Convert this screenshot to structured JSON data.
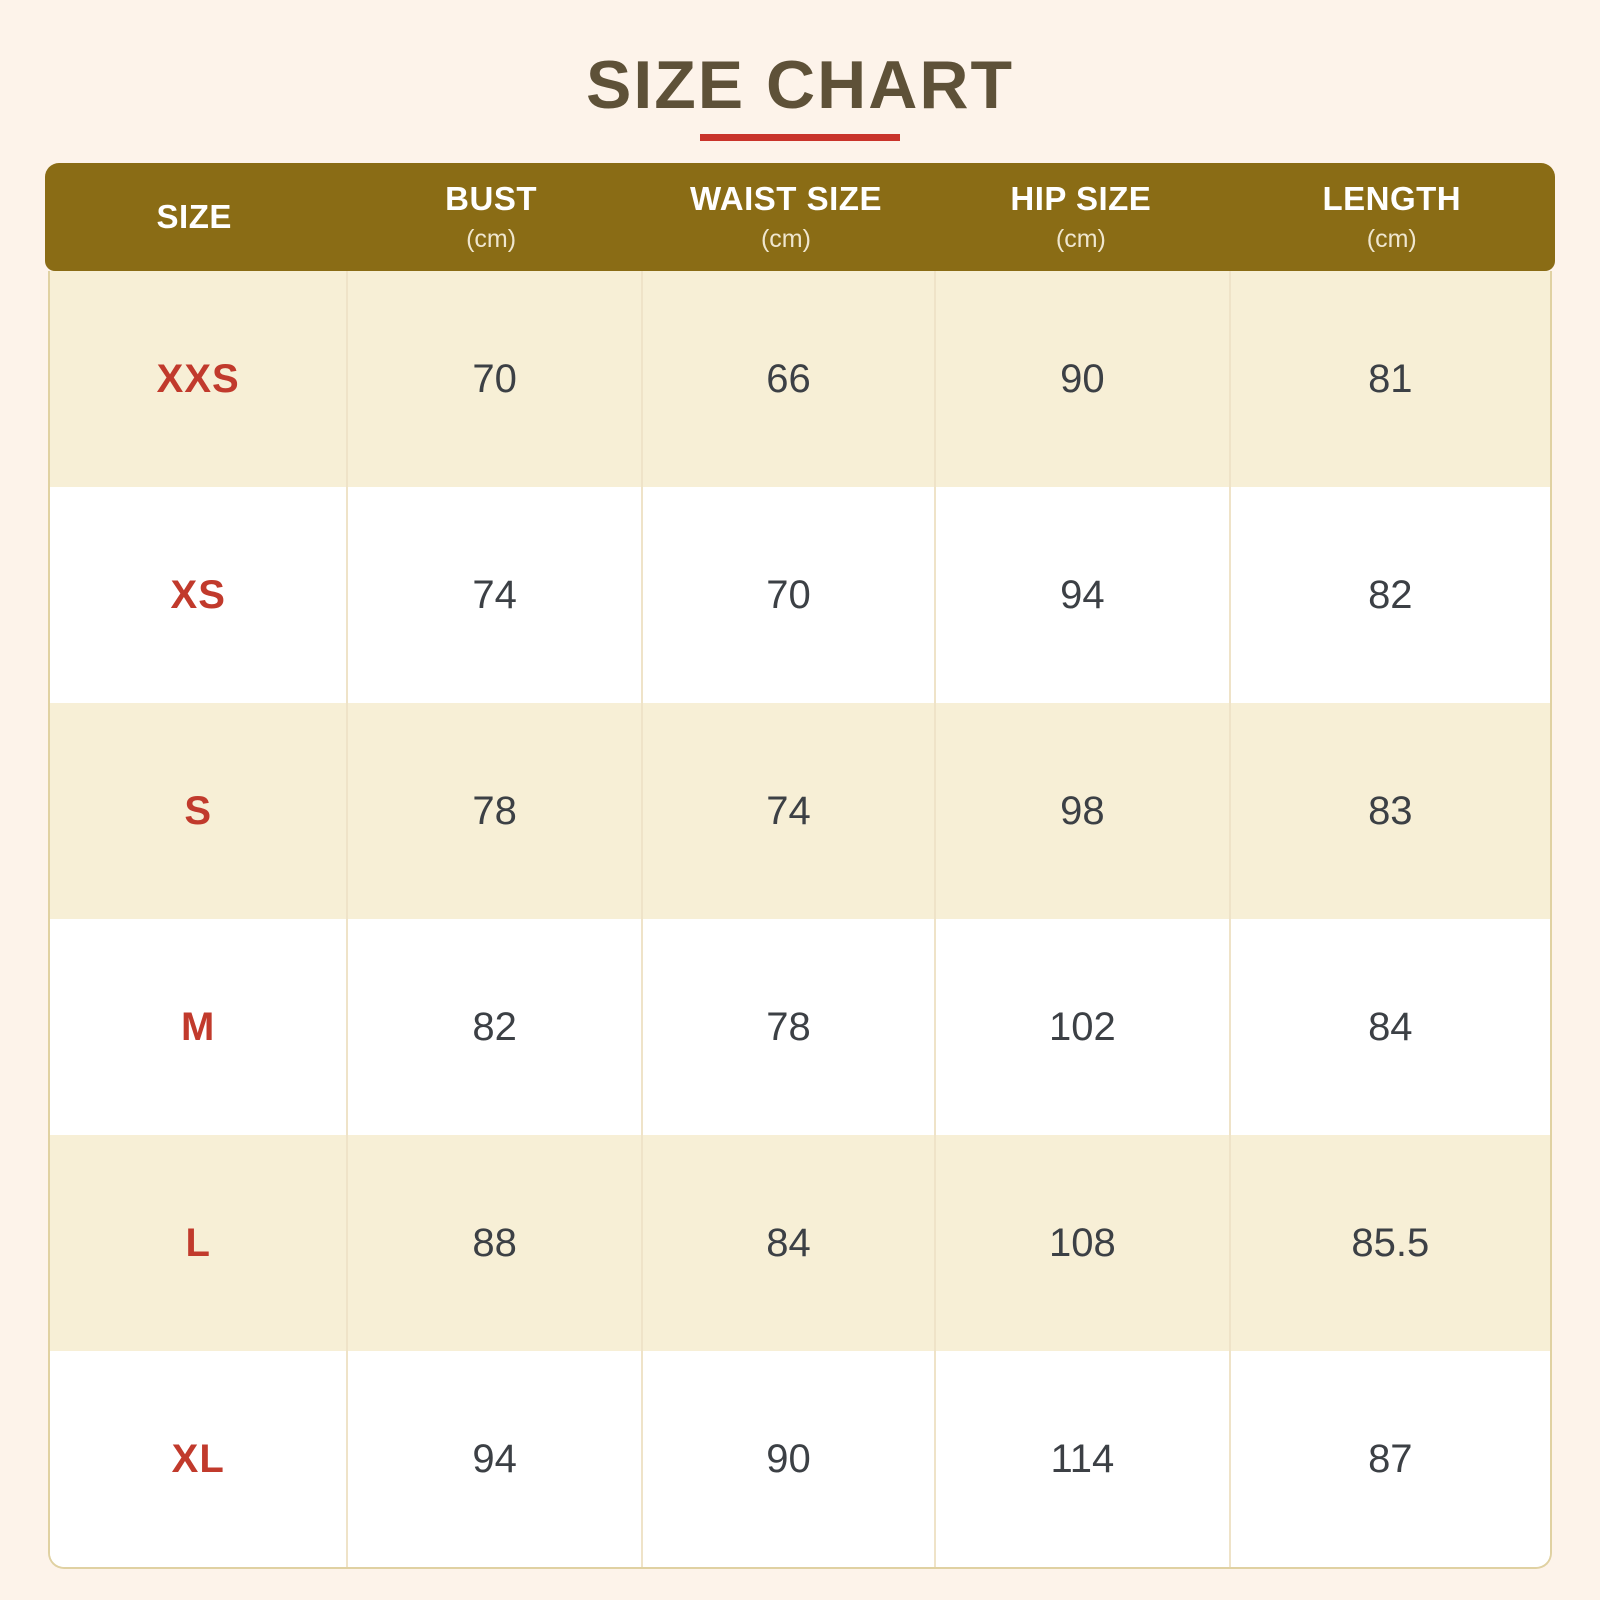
{
  "title": "SIZE CHART",
  "colors": {
    "page_bg": "#FDF3EA",
    "title_text": "#5E5138",
    "accent_underline": "#C9332A",
    "header_bg": "#8A6C15",
    "header_text": "#FFFFFF",
    "header_unit_text": "#EFE6CE",
    "row_cream": "#F7EFD6",
    "row_white": "#FFFFFF",
    "divider": "#EFE3C8",
    "table_border": "#E0D1A2",
    "size_label_text": "#C13A2C",
    "value_text": "#3C4045"
  },
  "table": {
    "columns": [
      {
        "label": "SIZE",
        "sub": ""
      },
      {
        "label": "BUST",
        "sub": "(cm)"
      },
      {
        "label": "WAIST SIZE",
        "sub": "(cm)"
      },
      {
        "label": "HIP SIZE",
        "sub": "(cm)"
      },
      {
        "label": "LENGTH",
        "sub": "(cm)"
      }
    ],
    "rows": [
      {
        "size": "XXS",
        "values": [
          "70",
          "66",
          "90",
          "81"
        ]
      },
      {
        "size": "XS",
        "values": [
          "74",
          "70",
          "94",
          "82"
        ]
      },
      {
        "size": "S",
        "values": [
          "78",
          "74",
          "98",
          "83"
        ]
      },
      {
        "size": "M",
        "values": [
          "82",
          "78",
          "102",
          "84"
        ]
      },
      {
        "size": "L",
        "values": [
          "88",
          "84",
          "108",
          "85.5"
        ]
      },
      {
        "size": "XL",
        "values": [
          "94",
          "90",
          "114",
          "87"
        ]
      }
    ]
  },
  "chart_data": {
    "type": "table",
    "title": "SIZE CHART",
    "columns": [
      "SIZE",
      "BUST (cm)",
      "WAIST SIZE (cm)",
      "HIP SIZE (cm)",
      "LENGTH (cm)"
    ],
    "rows": [
      [
        "XXS",
        70,
        66,
        90,
        81
      ],
      [
        "XS",
        74,
        70,
        94,
        82
      ],
      [
        "S",
        78,
        74,
        98,
        83
      ],
      [
        "M",
        82,
        78,
        102,
        84
      ],
      [
        "L",
        88,
        84,
        108,
        85.5
      ],
      [
        "XL",
        94,
        90,
        114,
        87
      ]
    ]
  }
}
